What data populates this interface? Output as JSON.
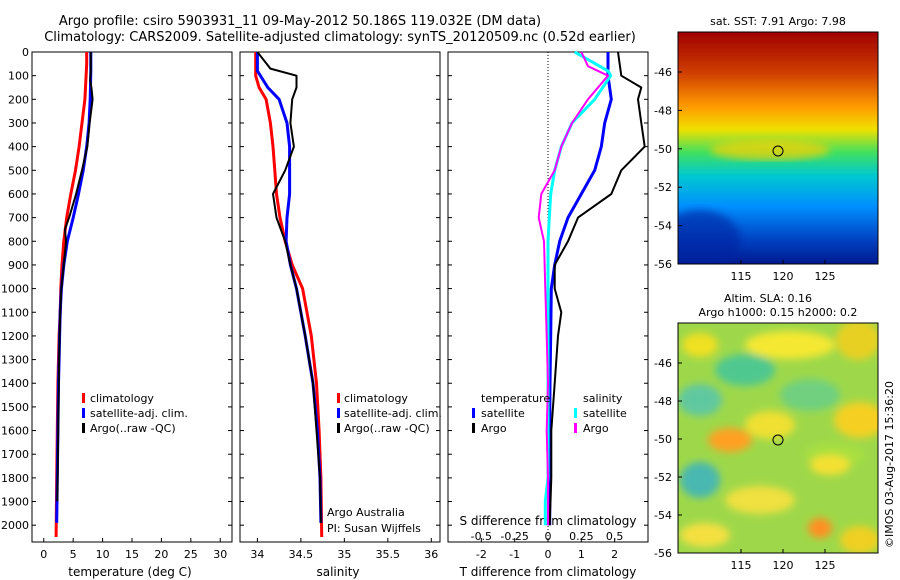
{
  "header": {
    "line1": "Argo profile: csiro 5903931_11 09-May-2012 50.186S 119.032E (DM data)",
    "line2": "Climatology: CARS2009. Satellite-adjusted climatology: synTS_20120509.nc (0.52d earlier)"
  },
  "depth_ticks": [
    0,
    100,
    200,
    300,
    400,
    500,
    600,
    700,
    800,
    900,
    1000,
    1100,
    1200,
    1300,
    1400,
    1500,
    1600,
    1700,
    1800,
    1900,
    2000
  ],
  "panels": {
    "temperature": {
      "xlabel": "temperature (deg C)",
      "xticks": [
        "0",
        "5",
        "10",
        "15",
        "20",
        "25",
        "30"
      ],
      "legend": [
        "climatology",
        "satellite-adj. clim.",
        "Argo(..raw -QC)"
      ]
    },
    "salinity": {
      "xlabel": "salinity",
      "xticks": [
        "34",
        "34.5",
        "35",
        "35.5",
        "36"
      ],
      "legend": [
        "climatology",
        "satellite-adj. clim.",
        "Argo(..raw -QC)"
      ],
      "note1": "Argo Australia",
      "note2": "PI: Susan Wijffels"
    },
    "difference": {
      "xlabel": "T difference from climatology",
      "top_label": "S difference from climatology",
      "xticks": [
        "-2",
        "-1",
        "0",
        "1",
        "2"
      ],
      "top_ticks": [
        "-0.5",
        "-0.25",
        "0",
        "0.25",
        "0.5"
      ],
      "legend_temp_title": "temperature",
      "legend_sal_title": "salinity",
      "legend_temp_items": [
        "satellite",
        "Argo"
      ],
      "legend_sal_items": [
        "satellite",
        "Argo"
      ]
    }
  },
  "maps": {
    "sst": {
      "title": "sat. SST: 7.91  Argo: 7.98",
      "lat_ticks": [
        "-46",
        "-48",
        "-50",
        "-52",
        "-54",
        "-56"
      ],
      "lon_ticks": [
        "115",
        "120",
        "125"
      ]
    },
    "sla": {
      "title1": "Altim. SLA: 0.16",
      "title2": "Argo h1000: 0.15 h2000: 0.2",
      "lat_ticks": [
        "-46",
        "-48",
        "-50",
        "-52",
        "-54",
        "-56"
      ],
      "lon_ticks": [
        "115",
        "120",
        "125"
      ]
    }
  },
  "credit": "©IMOS 03-Aug-2017 15:36:20",
  "colors": {
    "climatology": "#ff0000",
    "satellite": "#0000ff",
    "argo": "#000000",
    "sal_satellite": "#00ffff",
    "sal_argo": "#ff00ff"
  },
  "chart_data": [
    {
      "type": "line",
      "title": "Argo profile: csiro 5903931_11 09-May-2012 50.186S 119.032E (DM data)",
      "xlabel": "temperature (deg C)",
      "ylabel": "",
      "xlim": [
        -2,
        32
      ],
      "ylim": [
        2050,
        0
      ],
      "series": [
        {
          "name": "climatology",
          "x": [
            7.3,
            7.3,
            7.0,
            6.5,
            6.0,
            5.4,
            4.6,
            3.9,
            3.4,
            3.1,
            2.9,
            2.8,
            2.6,
            2.5,
            2.4,
            2.3,
            2.2,
            2.1
          ],
          "y": [
            0,
            50,
            200,
            300,
            400,
            500,
            600,
            700,
            800,
            900,
            1000,
            1100,
            1200,
            1300,
            1400,
            1600,
            1800,
            2050
          ]
        },
        {
          "name": "satellite-adj. clim.",
          "x": [
            8.0,
            8.0,
            7.9,
            7.7,
            7.3,
            6.7,
            5.9,
            5.0,
            4.0,
            3.4,
            3.0,
            2.8,
            2.7,
            2.6,
            2.5,
            2.4,
            2.3,
            2.2
          ],
          "y": [
            0,
            80,
            200,
            300,
            400,
            500,
            600,
            700,
            800,
            900,
            1000,
            1100,
            1200,
            1300,
            1400,
            1600,
            1800,
            1990
          ]
        },
        {
          "name": "Argo(..raw -QC)",
          "x": [
            8.0,
            8.0,
            7.9,
            8.1,
            8.3,
            7.8,
            7.4,
            6.5,
            5.5,
            4.3,
            3.6,
            3.8,
            3.4,
            3.0,
            2.8,
            2.6,
            2.5,
            2.4,
            2.3
          ],
          "y": [
            0,
            80,
            120,
            150,
            200,
            300,
            400,
            500,
            600,
            700,
            750,
            800,
            900,
            1000,
            1100,
            1300,
            1500,
            1700,
            1900
          ]
        }
      ]
    },
    {
      "type": "line",
      "xlabel": "salinity",
      "ylabel": "",
      "xlim": [
        33.8,
        36.1
      ],
      "ylim": [
        2050,
        0
      ],
      "series": [
        {
          "name": "climatology",
          "x": [
            33.98,
            33.98,
            34.02,
            34.1,
            34.15,
            34.18,
            34.2,
            34.22,
            34.26,
            34.32,
            34.4,
            34.52,
            34.62,
            34.68,
            34.71,
            34.73,
            34.74
          ],
          "y": [
            0,
            100,
            150,
            200,
            300,
            400,
            500,
            600,
            700,
            800,
            900,
            1000,
            1200,
            1400,
            1600,
            1800,
            2050
          ]
        },
        {
          "name": "satellite-adj. clim.",
          "x": [
            34.0,
            34.0,
            34.12,
            34.25,
            34.34,
            34.37,
            34.37,
            34.37,
            34.34,
            34.33,
            34.38,
            34.45,
            34.55,
            34.64,
            34.69,
            34.72,
            34.73
          ],
          "y": [
            0,
            80,
            150,
            200,
            300,
            400,
            500,
            600,
            700,
            800,
            900,
            1000,
            1200,
            1400,
            1600,
            1800,
            1990
          ]
        },
        {
          "name": "Argo(..raw -QC)",
          "x": [
            34.0,
            34.15,
            34.45,
            34.45,
            34.4,
            34.38,
            34.42,
            34.32,
            34.18,
            34.22,
            34.32,
            34.38,
            34.45,
            34.55,
            34.64,
            34.68,
            34.72,
            34.73
          ],
          "y": [
            0,
            70,
            100,
            150,
            200,
            300,
            400,
            500,
            600,
            700,
            800,
            900,
            1000,
            1200,
            1400,
            1600,
            1800,
            1990
          ]
        }
      ]
    },
    {
      "type": "line",
      "xlabel": "T difference from climatology",
      "ylabel": "",
      "xlim": [
        -3,
        3
      ],
      "ylim": [
        2050,
        0
      ],
      "series": [
        {
          "name": "temperature satellite",
          "x": [
            1.8,
            1.8,
            1.8,
            1.9,
            1.7,
            1.6,
            1.4,
            1.0,
            0.6,
            0.35,
            0.2,
            0.1,
            0.08,
            0.06,
            0.05,
            0.05,
            0.05,
            0.05
          ],
          "y": [
            0,
            50,
            100,
            200,
            300,
            400,
            500,
            600,
            700,
            800,
            900,
            1000,
            1200,
            1400,
            1600,
            1800,
            1900,
            2000
          ]
        },
        {
          "name": "temperature Argo",
          "x": [
            2.1,
            2.2,
            2.8,
            2.7,
            2.8,
            2.9,
            2.2,
            1.9,
            0.9,
            0.6,
            0.2,
            0.2,
            0.4,
            0.3,
            0.2,
            0.1,
            0.1,
            0.05
          ],
          "y": [
            0,
            100,
            150,
            200,
            300,
            400,
            500,
            600,
            700,
            800,
            900,
            1000,
            1100,
            1200,
            1400,
            1600,
            1800,
            2000
          ]
        },
        {
          "name": "salinity satellite",
          "x": [
            0.2,
            0.45,
            0.47,
            0.35,
            0.18,
            0.1,
            0.05,
            0.02,
            0.01,
            0.0,
            0.0,
            0.0,
            0.0,
            0.0,
            0.0,
            -0.02,
            -0.02
          ],
          "y": [
            0,
            80,
            100,
            200,
            300,
            400,
            500,
            600,
            700,
            800,
            1000,
            1200,
            1400,
            1600,
            1800,
            1900,
            2000
          ]
        },
        {
          "name": "salinity Argo",
          "x": [
            0.25,
            0.3,
            0.45,
            0.3,
            0.18,
            0.1,
            0.05,
            -0.05,
            -0.07,
            -0.03,
            -0.02,
            -0.01,
            0.0,
            -0.01,
            0.0,
            0.0
          ],
          "y": [
            0,
            60,
            100,
            200,
            300,
            400,
            500,
            600,
            700,
            800,
            1000,
            1200,
            1400,
            1600,
            1800,
            2000
          ]
        }
      ]
    }
  ]
}
